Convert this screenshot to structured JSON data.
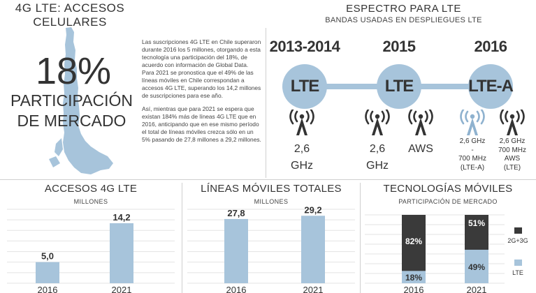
{
  "lte_access": {
    "title": "4G LTE: ACCESOS CELULARES",
    "share_value": "18%",
    "share_label": "PARTICIPACIÓN DE MERCADO",
    "paragraphs": [
      "Las suscripciones 4G LTE en Chile superaron durante 2016 los 5 millones, otorgando a esta tecnología una participación del 18%, de acuerdo con información de Global Data. Para 2021 se pronostica que el 49% de las líneas móviles en Chile correspondan a accesos 4G LTE, superando los 14,2 millones de suscripciones para ese año.",
      "Así, mientras que para 2021 se espera que existan 184% más de líneas 4G LTE que en 2016, anticipando que en ese mismo período el total de líneas móviles crezca sólo en un 5% pasando de 27,8 millones a 29,2 millones."
    ]
  },
  "spectrum": {
    "title": "ESPECTRO PARA LTE",
    "subtitle": "BANDAS USADAS EN DESPLIEGUES LTE",
    "periods": [
      {
        "year": "2013-2014",
        "tech": "LTE"
      },
      {
        "year": "2015",
        "tech": "LTE"
      },
      {
        "year": "2016",
        "tech": "LTE-A"
      }
    ],
    "bands": [
      {
        "icon": "antenna-tower-icon",
        "lines": [
          "2,6",
          "GHz"
        ]
      },
      {
        "icon": "antenna-tower-icon",
        "lines": [
          "2,6",
          "GHz"
        ]
      },
      {
        "icon": "antenna-tower-icon",
        "lines": [
          "AWS"
        ]
      },
      {
        "icon": "antenna-tower-light-icon",
        "lines": [
          "2,6 GHz",
          "-",
          "700 MHz",
          "(LTE-A)"
        ]
      },
      {
        "icon": "antenna-tower-icon",
        "lines": [
          "2,6 GHz",
          "700 MHz",
          "AWS",
          "(LTE)"
        ]
      }
    ],
    "colors": {
      "accent": "#a7c4db",
      "dark": "#333333",
      "icon_light": "#8fb2cf"
    }
  },
  "chart_data": [
    {
      "type": "bar",
      "title": "ACCESOS 4G LTE",
      "subtitle": "MILLONES",
      "categories": [
        "2016",
        "2021"
      ],
      "values": [
        5.0,
        14.2
      ],
      "value_labels": [
        "5,0",
        "14,2"
      ],
      "ylim": [
        0,
        17.5
      ],
      "grid": true,
      "color": "#a7c4db"
    },
    {
      "type": "bar",
      "title": "LÍNEAS MÓVILES TOTALES",
      "subtitle": "MILLONES",
      "categories": [
        "2016",
        "2021"
      ],
      "values": [
        27.8,
        29.2
      ],
      "value_labels": [
        "27,8",
        "29,2"
      ],
      "ylim": [
        0,
        32
      ],
      "grid": true,
      "color": "#a7c4db"
    },
    {
      "type": "bar",
      "stacked": true,
      "percent": true,
      "title": "TECNOLOGÍAS MÓVILES",
      "subtitle": "PARTICIPACIÓN DE MERCADO",
      "categories": [
        "2016",
        "2021"
      ],
      "series": [
        {
          "name": "LTE",
          "values": [
            18,
            49
          ],
          "labels": [
            "18%",
            "49%"
          ],
          "color": "#a7c4db"
        },
        {
          "name": "2G+3G",
          "values": [
            82,
            51
          ],
          "labels": [
            "82%",
            "51%"
          ],
          "color": "#3a3a3a"
        }
      ],
      "ylim": [
        0,
        100
      ],
      "grid": true,
      "legend": "right"
    }
  ]
}
